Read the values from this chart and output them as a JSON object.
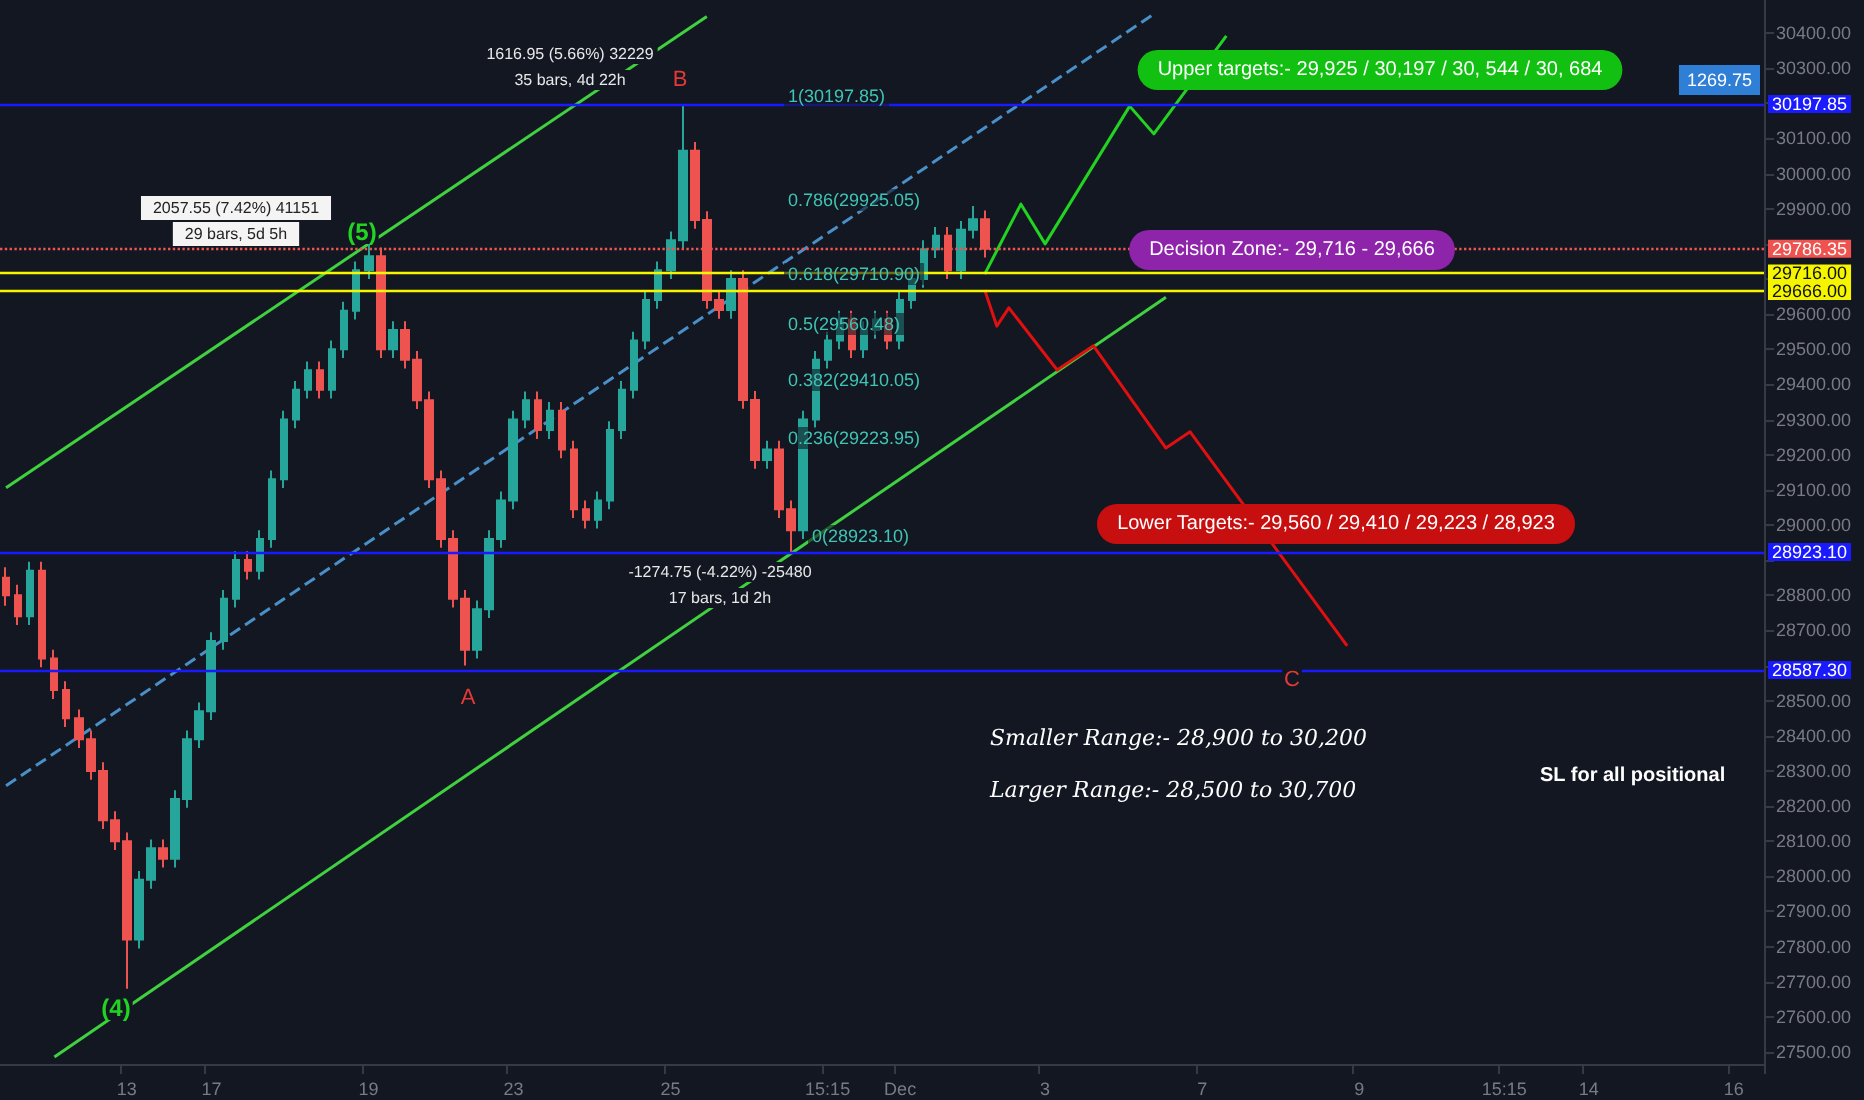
{
  "chart_data": {
    "type": "candlestick",
    "marker": "none",
    "categories": [
      null,
      null,
      null,
      null,
      null,
      null,
      null,
      null,
      null,
      null,
      "13",
      null,
      null,
      null,
      null,
      null,
      null,
      "17",
      null,
      null,
      null,
      null,
      null,
      null,
      null,
      null,
      null,
      null,
      null,
      null,
      "19",
      null,
      null,
      null,
      null,
      null,
      null,
      null,
      null,
      null,
      null,
      null,
      "23",
      null,
      null,
      null,
      null,
      null,
      null,
      null,
      null,
      null,
      null,
      null,
      null,
      "25",
      null,
      null,
      null,
      null,
      null,
      null,
      null,
      null,
      null,
      null,
      null,
      null,
      "15:15",
      null,
      null,
      null,
      null,
      null,
      "Dec",
      null,
      null,
      null,
      null,
      null,
      null,
      null,
      null,
      null,
      null,
      null,
      "3",
      null,
      null,
      null,
      null,
      null,
      null,
      null,
      null,
      null,
      null,
      null,
      null,
      "7",
      null,
      null,
      null,
      null,
      null,
      null,
      null,
      null,
      null,
      null,
      null,
      null,
      "9",
      null,
      null,
      null,
      null,
      null,
      null,
      null,
      null,
      null,
      null,
      null,
      "15:15",
      null,
      null,
      null,
      null,
      null,
      null,
      "14",
      null,
      null,
      null,
      null,
      null,
      null,
      null,
      null,
      null,
      null,
      null,
      "16",
      null,
      null
    ],
    "ylim": [
      27466,
      30494
    ],
    "yticks": [
      {
        "value": 27500,
        "label": "27500.00"
      },
      {
        "value": 27600,
        "label": "27600.00"
      },
      {
        "value": 27700,
        "label": "27700.00"
      },
      {
        "value": 27800,
        "label": "27800.00"
      },
      {
        "value": 27900,
        "label": "27900.00"
      },
      {
        "value": 28000,
        "label": "28000.00"
      },
      {
        "value": 28100,
        "label": "28100.00"
      },
      {
        "value": 28200,
        "label": "28200.00"
      },
      {
        "value": 28300,
        "label": "28300.00"
      },
      {
        "value": 28400,
        "label": "28400.00"
      },
      {
        "value": 28500,
        "label": "28500.00"
      },
      {
        "value": 28600,
        "label": null
      },
      {
        "value": 28700,
        "label": "28700.00"
      },
      {
        "value": 28800,
        "label": "28800.00"
      },
      {
        "value": 28900,
        "label": null
      },
      {
        "value": 29000,
        "label": "29000.00"
      },
      {
        "value": 29100,
        "label": "29100.00"
      },
      {
        "value": 29200,
        "label": "29200.00"
      },
      {
        "value": 29300,
        "label": "29300.00"
      },
      {
        "value": 29400,
        "label": "29400.00"
      },
      {
        "value": 29500,
        "label": "29500.00"
      },
      {
        "value": 29600,
        "label": "29600.00"
      },
      {
        "value": 29700,
        "label": null
      },
      {
        "value": 29800,
        "label": null
      },
      {
        "value": 29900,
        "label": "29900.00"
      },
      {
        "value": 30000,
        "label": "30000.00"
      },
      {
        "value": 30100,
        "label": "30100.00"
      },
      {
        "value": 30200,
        "label": null
      },
      {
        "value": 30300,
        "label": "30300.00"
      },
      {
        "value": 30400,
        "label": "30400.00"
      }
    ],
    "ohlc": [
      [
        28850,
        28880,
        28770,
        28800
      ],
      [
        28800,
        28830,
        28715,
        28740
      ],
      [
        28740,
        28895,
        28715,
        28870
      ],
      [
        28870,
        28895,
        28595,
        28620
      ],
      [
        28620,
        28645,
        28505,
        28530
      ],
      [
        28530,
        28555,
        28425,
        28450
      ],
      [
        28450,
        28475,
        28365,
        28390
      ],
      [
        28390,
        28415,
        28275,
        28300
      ],
      [
        28300,
        28325,
        28135,
        28160
      ],
      [
        28160,
        28185,
        28075,
        28100
      ],
      [
        28100,
        28125,
        27680,
        27820
      ],
      [
        27820,
        28015,
        27795,
        27990
      ],
      [
        27990,
        28105,
        27965,
        28080
      ],
      [
        28080,
        28105,
        28025,
        28050
      ],
      [
        28050,
        28245,
        28025,
        28220
      ],
      [
        28220,
        28415,
        28195,
        28390
      ],
      [
        28390,
        28495,
        28365,
        28470
      ],
      [
        28470,
        28695,
        28445,
        28670
      ],
      [
        28670,
        28815,
        28645,
        28790
      ],
      [
        28790,
        28925,
        28765,
        28900
      ],
      [
        28900,
        28925,
        28845,
        28870
      ],
      [
        28870,
        28985,
        28845,
        28960
      ],
      [
        28960,
        29155,
        28935,
        29130
      ],
      [
        29130,
        29325,
        29105,
        29300
      ],
      [
        29300,
        29410,
        29275,
        29385
      ],
      [
        29385,
        29465,
        29360,
        29440
      ],
      [
        29440,
        29465,
        29360,
        29385
      ],
      [
        29385,
        29525,
        29360,
        29500
      ],
      [
        29500,
        29635,
        29475,
        29610
      ],
      [
        29610,
        29750,
        29585,
        29725
      ],
      [
        29725,
        29800,
        29700,
        29765
      ],
      [
        29765,
        29790,
        29475,
        29500
      ],
      [
        29500,
        29580,
        29475,
        29555
      ],
      [
        29555,
        29580,
        29445,
        29470
      ],
      [
        29470,
        29495,
        29330,
        29355
      ],
      [
        29355,
        29380,
        29105,
        29130
      ],
      [
        29130,
        29155,
        28935,
        28960
      ],
      [
        28960,
        28985,
        28765,
        28790
      ],
      [
        28790,
        28815,
        28600,
        28645
      ],
      [
        28645,
        28785,
        28620,
        28760
      ],
      [
        28760,
        28985,
        28735,
        28960
      ],
      [
        28960,
        29095,
        28935,
        29070
      ],
      [
        29070,
        29325,
        29045,
        29300
      ],
      [
        29300,
        29380,
        29275,
        29355
      ],
      [
        29355,
        29380,
        29245,
        29270
      ],
      [
        29270,
        29350,
        29245,
        29325
      ],
      [
        29325,
        29350,
        29190,
        29215
      ],
      [
        29215,
        29240,
        29020,
        29045
      ],
      [
        29045,
        29070,
        28990,
        29015
      ],
      [
        29015,
        29095,
        28990,
        29070
      ],
      [
        29070,
        29295,
        29045,
        29270
      ],
      [
        29270,
        29410,
        29245,
        29385
      ],
      [
        29385,
        29550,
        29360,
        29525
      ],
      [
        29525,
        29665,
        29500,
        29640
      ],
      [
        29640,
        29750,
        29615,
        29725
      ],
      [
        29725,
        29835,
        29700,
        29810
      ],
      [
        29810,
        30198,
        29785,
        30065
      ],
      [
        30065,
        30090,
        29843,
        29868
      ],
      [
        29868,
        29893,
        29615,
        29640
      ],
      [
        29640,
        29665,
        29587,
        29612
      ],
      [
        29612,
        29725,
        29587,
        29700
      ],
      [
        29700,
        29725,
        29331,
        29356
      ],
      [
        29356,
        29381,
        29160,
        29185
      ],
      [
        29185,
        29240,
        29160,
        29215
      ],
      [
        29215,
        29240,
        29020,
        29045
      ],
      [
        29045,
        29070,
        28923,
        28985
      ],
      [
        28985,
        29325,
        28960,
        29300
      ],
      [
        29300,
        29495,
        29275,
        29470
      ],
      [
        29470,
        29550,
        29445,
        29525
      ],
      [
        29525,
        29610,
        29500,
        29585
      ],
      [
        29585,
        29610,
        29475,
        29500
      ],
      [
        29500,
        29580,
        29475,
        29555
      ],
      [
        29555,
        29610,
        29530,
        29585
      ],
      [
        29585,
        29610,
        29500,
        29525
      ],
      [
        29525,
        29665,
        29500,
        29640
      ],
      [
        29640,
        29725,
        29615,
        29700
      ],
      [
        29700,
        29810,
        29675,
        29785
      ],
      [
        29785,
        29848,
        29760,
        29823
      ],
      [
        29823,
        29848,
        29700,
        29725
      ],
      [
        29725,
        29865,
        29700,
        29840
      ],
      [
        29840,
        29908,
        29815,
        29870
      ],
      [
        29870,
        29895,
        29761,
        29786.35
      ],
      null,
      null,
      null,
      null,
      null,
      null,
      null,
      null,
      null,
      null,
      null,
      null,
      null,
      null,
      null,
      null,
      null,
      null,
      null,
      null,
      null,
      null,
      null,
      null,
      null,
      null,
      null,
      null,
      null,
      null,
      null,
      null,
      null,
      null,
      null,
      null,
      null,
      null,
      null,
      null,
      null,
      null,
      null,
      null,
      null,
      null,
      null,
      null,
      null,
      null,
      null,
      null,
      null,
      null,
      null,
      null,
      null,
      null,
      null,
      null,
      null,
      null,
      null,
      null
    ],
    "series": [
      {
        "type": "line",
        "color": "#3fd13f",
        "values": [
          29106,
          null,
          null,
          null,
          null,
          null,
          null,
          null,
          null,
          null,
          null,
          null,
          null,
          null,
          null,
          null,
          null,
          null,
          null,
          null,
          null,
          null,
          null,
          null,
          null,
          null,
          null,
          null,
          null,
          null,
          null,
          null,
          null,
          null,
          null,
          null,
          null,
          null,
          null,
          null,
          null,
          null,
          null,
          null,
          null,
          null,
          null,
          null,
          null,
          null,
          null,
          null,
          null,
          null,
          null,
          null,
          null,
          null,
          30447,
          null,
          null,
          null,
          null,
          null,
          null,
          null,
          null,
          null,
          null,
          null,
          null,
          null,
          null,
          null,
          null,
          null,
          null,
          null,
          null,
          null,
          null,
          null,
          null,
          null,
          null,
          null,
          null,
          null,
          null,
          null,
          null,
          null,
          null,
          null,
          null,
          null,
          null,
          null,
          null,
          null,
          null,
          null,
          null,
          null,
          null,
          null,
          null,
          null,
          null,
          null,
          null,
          null,
          null,
          null,
          null,
          null,
          null,
          null,
          null,
          null,
          null,
          null,
          null,
          null,
          null,
          null,
          null,
          null,
          null,
          null,
          null,
          null,
          null,
          null,
          null,
          null,
          null,
          null,
          null,
          null,
          null,
          null,
          null,
          null,
          null,
          null
        ]
      },
      {
        "type": "line",
        "color": "#3fd13f",
        "values": [
          null,
          null,
          null,
          null,
          27486,
          null,
          null,
          null,
          null,
          null,
          null,
          null,
          null,
          null,
          null,
          null,
          null,
          null,
          null,
          null,
          null,
          null,
          null,
          null,
          null,
          null,
          null,
          null,
          null,
          null,
          null,
          null,
          null,
          null,
          null,
          null,
          null,
          null,
          null,
          null,
          null,
          null,
          null,
          null,
          null,
          null,
          null,
          null,
          null,
          null,
          null,
          null,
          null,
          null,
          null,
          null,
          null,
          null,
          null,
          null,
          null,
          null,
          null,
          null,
          null,
          null,
          null,
          null,
          null,
          null,
          null,
          null,
          null,
          null,
          null,
          null,
          null,
          null,
          null,
          null,
          null,
          null,
          null,
          null,
          null,
          null,
          null,
          null,
          null,
          null,
          null,
          null,
          null,
          null,
          null,
          null,
          29648,
          null,
          null,
          null,
          null,
          null,
          null,
          null,
          null,
          null,
          null,
          null,
          null,
          null,
          null,
          null,
          null,
          null,
          null,
          null,
          null,
          null,
          null,
          null,
          null,
          null,
          null,
          null,
          null,
          null,
          null,
          null,
          null,
          null,
          null,
          null,
          null,
          null,
          null,
          null,
          null,
          null,
          null,
          null,
          null,
          null,
          null,
          null,
          null,
          null
        ]
      },
      {
        "type": "line",
        "color": "#4a90c8",
        "line_style": "dashed",
        "values": [
          28258,
          null,
          null,
          null,
          null,
          null,
          null,
          null,
          null,
          null,
          null,
          null,
          null,
          null,
          null,
          null,
          null,
          null,
          null,
          null,
          null,
          null,
          null,
          null,
          null,
          null,
          null,
          null,
          null,
          null,
          null,
          null,
          null,
          null,
          null,
          null,
          null,
          null,
          null,
          null,
          null,
          null,
          null,
          null,
          null,
          null,
          null,
          null,
          null,
          null,
          null,
          null,
          null,
          null,
          null,
          null,
          null,
          null,
          null,
          null,
          null,
          null,
          null,
          null,
          null,
          null,
          null,
          null,
          null,
          null,
          null,
          null,
          null,
          null,
          null,
          null,
          null,
          null,
          null,
          null,
          null,
          null,
          null,
          null,
          null,
          null,
          null,
          null,
          null,
          null,
          null,
          null,
          null,
          null,
          null,
          30454,
          null,
          null,
          null,
          null,
          null,
          null,
          null,
          null,
          null,
          null,
          null,
          null,
          null,
          null,
          null,
          null,
          null,
          null,
          null,
          null,
          null,
          null,
          null,
          null,
          null,
          null,
          null,
          null,
          null,
          null,
          null,
          null,
          null,
          null,
          null,
          null,
          null,
          null,
          null,
          null,
          null,
          null,
          null,
          null,
          null,
          null,
          null,
          null,
          null,
          null
        ]
      },
      {
        "type": "line",
        "color": "#22d322",
        "values": [
          null,
          null,
          null,
          null,
          null,
          null,
          null,
          null,
          null,
          null,
          null,
          null,
          null,
          null,
          null,
          null,
          null,
          null,
          null,
          null,
          null,
          null,
          null,
          null,
          null,
          null,
          null,
          null,
          null,
          null,
          null,
          null,
          null,
          null,
          null,
          null,
          null,
          null,
          null,
          null,
          null,
          null,
          null,
          null,
          null,
          null,
          null,
          null,
          null,
          null,
          null,
          null,
          null,
          null,
          null,
          null,
          null,
          null,
          null,
          null,
          null,
          null,
          null,
          null,
          null,
          null,
          null,
          null,
          null,
          null,
          null,
          null,
          null,
          null,
          null,
          null,
          null,
          null,
          null,
          null,
          null,
          29714,
          null,
          null,
          29913,
          null,
          29800,
          null,
          null,
          null,
          null,
          null,
          null,
          30192,
          null,
          30113,
          null,
          null,
          null,
          null,
          null,
          30392,
          null,
          null,
          null,
          null,
          null,
          null,
          null,
          null,
          null,
          null,
          null,
          null,
          null,
          null,
          null,
          null,
          null,
          null,
          null,
          null,
          null,
          null,
          null,
          null,
          null,
          null,
          null,
          null,
          null,
          null,
          null,
          null,
          null,
          null,
          null,
          null,
          null,
          null,
          null,
          null,
          null,
          null,
          null,
          null
        ]
      },
      {
        "type": "line",
        "color": "#e01010",
        "values": [
          null,
          null,
          null,
          null,
          null,
          null,
          null,
          null,
          null,
          null,
          null,
          null,
          null,
          null,
          null,
          null,
          null,
          null,
          null,
          null,
          null,
          null,
          null,
          null,
          null,
          null,
          null,
          null,
          null,
          null,
          null,
          null,
          null,
          null,
          null,
          null,
          null,
          null,
          null,
          null,
          null,
          null,
          null,
          null,
          null,
          null,
          null,
          null,
          null,
          null,
          null,
          null,
          null,
          null,
          null,
          null,
          null,
          null,
          null,
          null,
          null,
          null,
          null,
          null,
          null,
          null,
          null,
          null,
          null,
          null,
          null,
          null,
          null,
          null,
          null,
          null,
          null,
          null,
          null,
          null,
          null,
          29669,
          29566,
          29618,
          null,
          null,
          null,
          29441,
          null,
          null,
          29510,
          null,
          null,
          null,
          null,
          null,
          29219,
          null,
          29265,
          null,
          null,
          null,
          null,
          null,
          null,
          null,
          null,
          null,
          null,
          null,
          null,
          28656,
          null,
          null,
          null,
          null,
          null,
          null,
          null,
          null,
          null,
          null,
          null,
          null,
          null,
          null,
          null,
          null,
          null,
          null,
          null,
          null,
          null,
          null,
          null,
          null,
          null,
          null,
          null,
          null,
          null,
          null,
          null,
          null,
          null,
          null
        ]
      }
    ],
    "ref_lines": [
      {
        "axis": "y",
        "value": 30197.85,
        "label": "30197.85",
        "color": "#1a1aff"
      },
      {
        "axis": "y",
        "value": 28923.1,
        "label": "28923.10",
        "color": "#1a1aff"
      },
      {
        "axis": "y",
        "value": 28587.3,
        "label": "28587.30",
        "color": "#1a1aff"
      },
      {
        "axis": "y",
        "value": 29716.0,
        "label": "29716.00",
        "color": "#f5f500"
      },
      {
        "axis": "y",
        "value": 29666.0,
        "label": "29666.00",
        "color": "#f5f500"
      },
      {
        "axis": "y",
        "value": 29786.35,
        "label": "29786.35",
        "color": "#ef5350",
        "line_style": "dotted"
      }
    ],
    "annotations": [
      "2057.55 (7.42%) 41151",
      "29 bars, 5d 5h",
      "1616.95 (5.66%) 32229",
      "35 bars, 4d 22h",
      "-1274.75 (-4.22%) -25480",
      "17 bars, 1d 2h",
      "(5)",
      "(4)",
      "B",
      "A",
      "C",
      "1(30197.85)",
      "0.786(29925.05)",
      "0.618(29710.90)",
      "0.5(29560.48)",
      "0.382(29410.05)",
      "0.236(29223.95)",
      "0(28923.10)",
      "Upper targets:- 29,925 / 30,197 / 30, 544 / 30, 684",
      "Decision Zone:- 29,716 - 29,666",
      "Lower Targets:- 29,560 / 29,410 / 29,223 / 28,923",
      "Smaller Range:- 28,900 to 30,200",
      "Larger Range:- 28,500 to 30,700",
      "SL for all positional",
      "1269.75"
    ]
  }
}
